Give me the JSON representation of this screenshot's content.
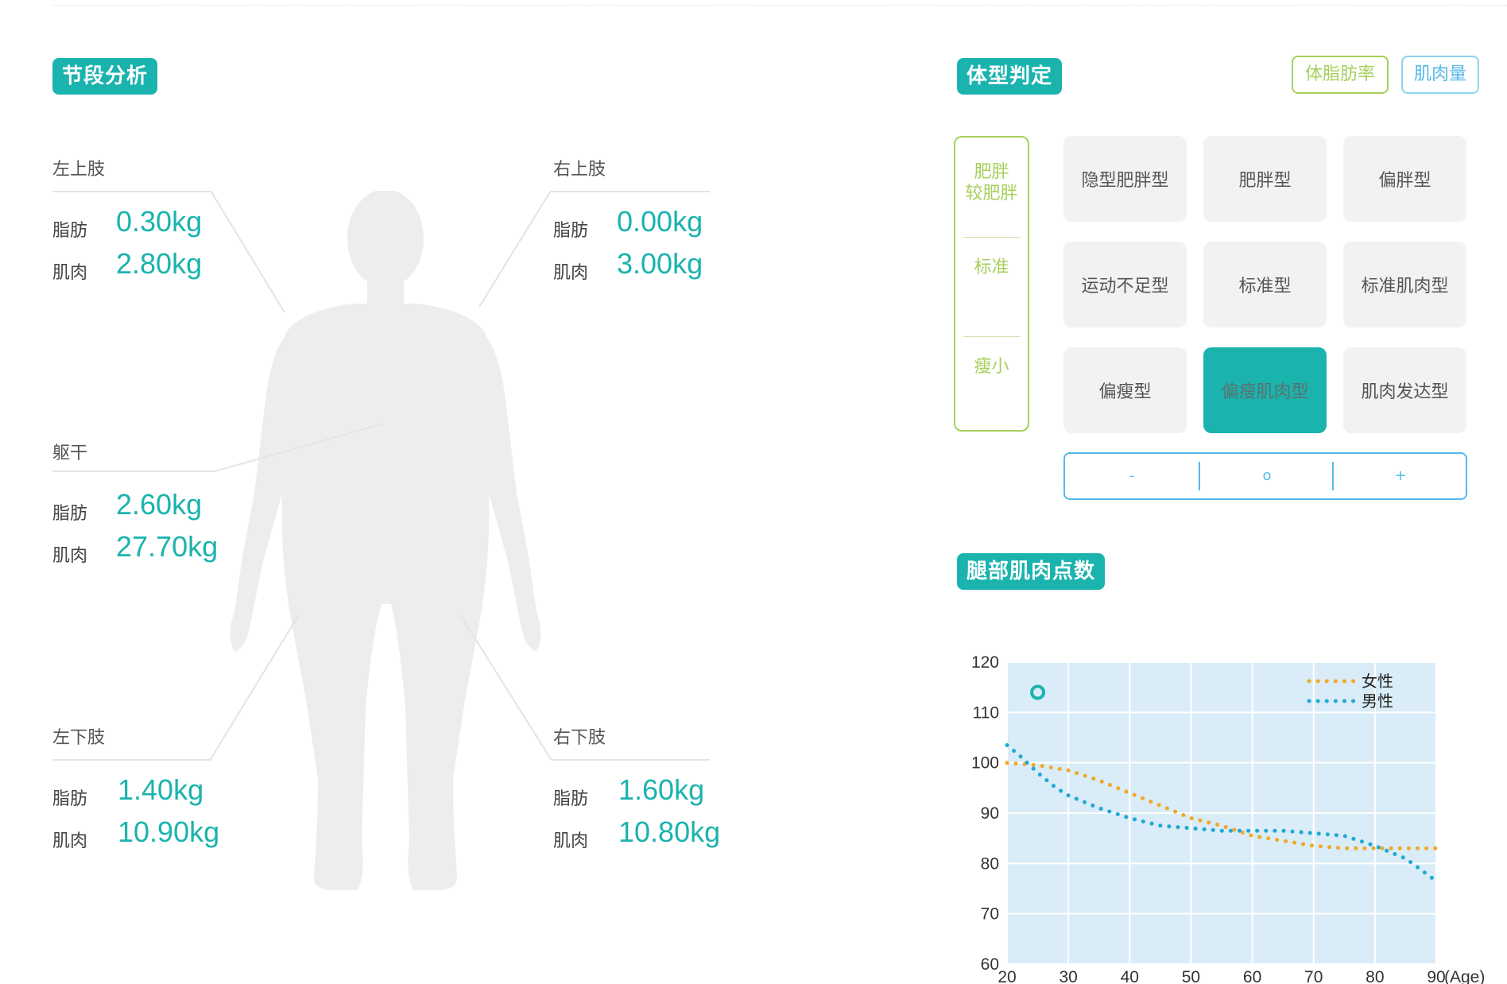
{
  "segment_analysis": {
    "title": "节段分析",
    "fat_label": "脂肪",
    "muscle_label": "肌肉",
    "left_arm": {
      "name": "左上肢",
      "fat": "0.30kg",
      "muscle": "2.80kg"
    },
    "right_arm": {
      "name": "右上肢",
      "fat": "0.00kg",
      "muscle": "3.00kg"
    },
    "trunk": {
      "name": "躯干",
      "fat": "2.60kg",
      "muscle": "27.70kg"
    },
    "left_leg": {
      "name": "左下肢",
      "fat": "1.40kg",
      "muscle": "10.90kg"
    },
    "right_leg": {
      "name": "右下肢",
      "fat": "1.60kg",
      "muscle": "10.80kg"
    }
  },
  "body_type": {
    "title": "体型判定",
    "toggle_fat": "体脂肪率",
    "toggle_muscle": "肌肉量",
    "scale": {
      "top_line1": "肥胖",
      "top_line2": "较肥胖",
      "middle": "标准",
      "bottom": "瘦小"
    },
    "grid": [
      [
        "隐型肥胖型",
        "肥胖型",
        "偏胖型"
      ],
      [
        "运动不足型",
        "标准型",
        "标准肌肉型"
      ],
      [
        "偏瘦型",
        "偏瘦肌肉型",
        "肌肉发达型"
      ]
    ],
    "selected": "偏瘦肌肉型",
    "indicator": {
      "minus": "-",
      "zero": "o",
      "plus": "+"
    },
    "colors": {
      "accent": "#1bb3ae",
      "green": "#a6d05b",
      "blue": "#55b9e8"
    }
  },
  "leg_score": {
    "title": "腿部肌肉点数",
    "chart_data": {
      "type": "line",
      "xlabel": "(Age)",
      "ylabel": "",
      "x_ticks": [
        20,
        30,
        40,
        50,
        60,
        70,
        80,
        90
      ],
      "y_ticks": [
        60,
        70,
        80,
        90,
        100,
        110,
        120
      ],
      "xlim": [
        20,
        90
      ],
      "ylim": [
        60,
        120
      ],
      "grid": true,
      "legend_position": "top-right",
      "series": [
        {
          "name": "女性",
          "color": "#f0a92a",
          "style": "dotted",
          "x": [
            20,
            25,
            30,
            35,
            40,
            45,
            50,
            55,
            60,
            65,
            70,
            75,
            80,
            85,
            90
          ],
          "y": [
            100,
            99.5,
            98.5,
            96.5,
            94,
            91.5,
            89,
            87.5,
            85.5,
            84.5,
            83.5,
            83,
            83,
            83,
            83
          ]
        },
        {
          "name": "男性",
          "color": "#21a9d4",
          "style": "dotted",
          "x": [
            20,
            22,
            25,
            28,
            30,
            35,
            40,
            45,
            50,
            55,
            60,
            65,
            70,
            75,
            80,
            85,
            90
          ],
          "y": [
            103.5,
            101.5,
            98,
            95,
            93.5,
            91,
            89,
            87.5,
            87,
            86.5,
            86.5,
            86.5,
            86,
            85.5,
            83.5,
            81,
            76.5
          ]
        }
      ],
      "marker": {
        "x": 25,
        "y": 114
      }
    }
  }
}
